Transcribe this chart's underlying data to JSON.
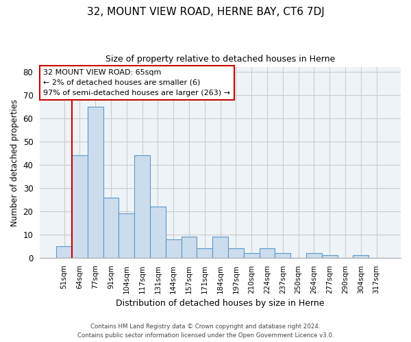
{
  "title": "32, MOUNT VIEW ROAD, HERNE BAY, CT6 7DJ",
  "subtitle": "Size of property relative to detached houses in Herne",
  "xlabel": "Distribution of detached houses by size in Herne",
  "ylabel": "Number of detached properties",
  "bar_color": "#ccdcec",
  "bar_edge_color": "#5599cc",
  "categories": [
    "51sqm",
    "64sqm",
    "77sqm",
    "91sqm",
    "104sqm",
    "117sqm",
    "131sqm",
    "144sqm",
    "157sqm",
    "171sqm",
    "184sqm",
    "197sqm",
    "210sqm",
    "224sqm",
    "237sqm",
    "250sqm",
    "264sqm",
    "277sqm",
    "290sqm",
    "304sqm",
    "317sqm"
  ],
  "values": [
    5,
    44,
    65,
    26,
    19,
    44,
    22,
    8,
    9,
    4,
    9,
    4,
    2,
    4,
    2,
    0,
    2,
    1,
    0,
    1,
    0
  ],
  "ylim": [
    0,
    82
  ],
  "yticks": [
    0,
    10,
    20,
    30,
    40,
    50,
    60,
    70,
    80
  ],
  "marker_color": "#cc0000",
  "annotation_title": "32 MOUNT VIEW ROAD: 65sqm",
  "annotation_line2": "← 2% of detached houses are smaller (6)",
  "annotation_line3": "97% of semi-detached houses are larger (263) →",
  "footer_line1": "Contains HM Land Registry data © Crown copyright and database right 2024.",
  "footer_line2": "Contains public sector information licensed under the Open Government Licence v3.0.",
  "bg_color": "#ffffff",
  "plot_bg_color": "#eef3f8"
}
